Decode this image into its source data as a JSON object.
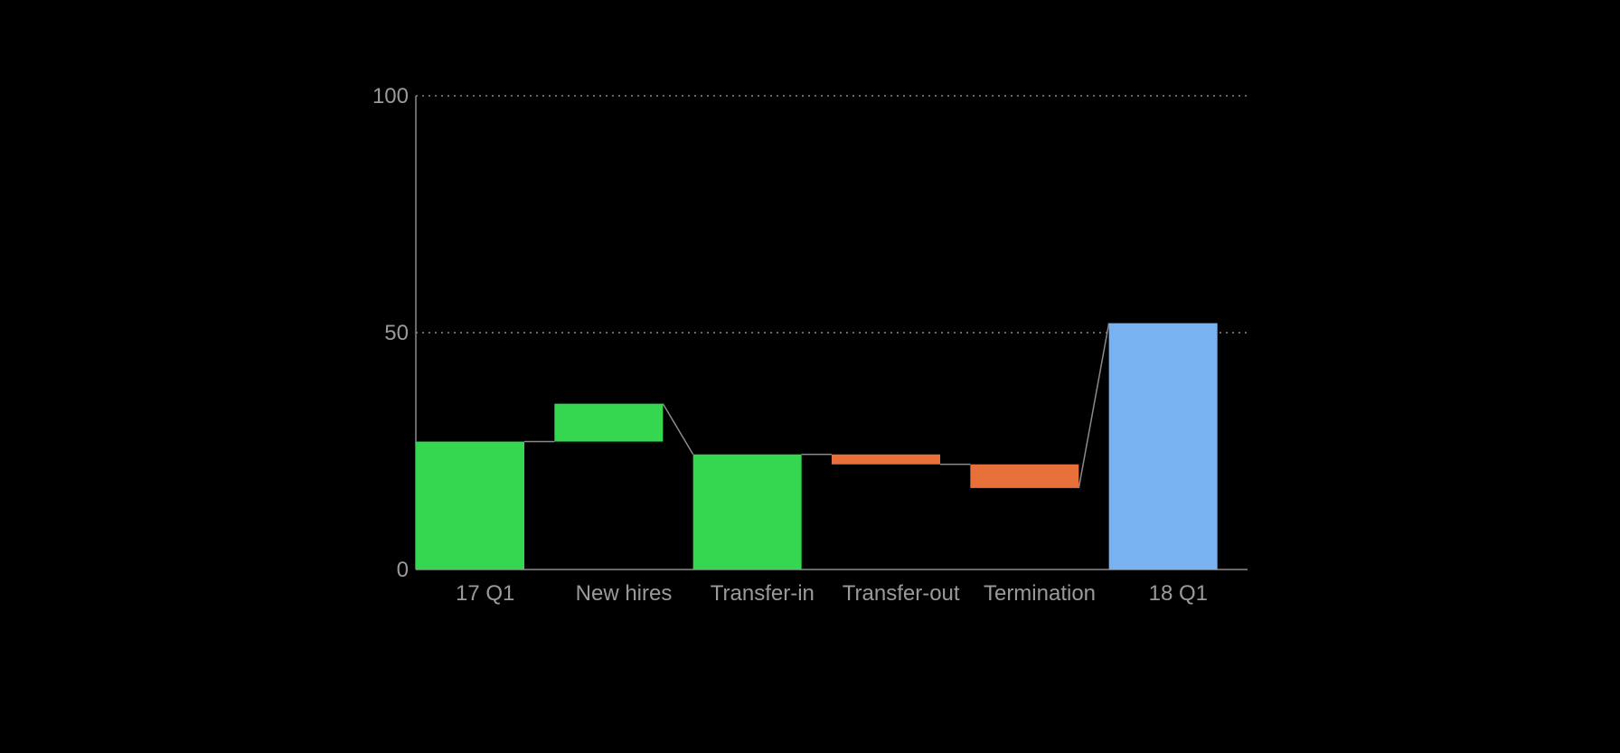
{
  "chart_data": {
    "type": "waterfall",
    "title": "",
    "xlabel": "",
    "ylabel": "",
    "ylim": [
      0,
      100
    ],
    "yticks": [
      0,
      50,
      100
    ],
    "grid": "horizontal-dotted",
    "categories": [
      "17 Q1",
      "New hires",
      "Transfer-in",
      "Transfer-out",
      "Termination",
      "18 Q1"
    ],
    "bars": [
      {
        "label": "17 Q1",
        "start": 0,
        "end": 27,
        "kind": "total"
      },
      {
        "label": "New hires",
        "start": 27,
        "end": 35,
        "kind": "increase"
      },
      {
        "label": "Transfer-in",
        "start": 0,
        "end": 24.3,
        "kind": "increase"
      },
      {
        "label": "Transfer-out",
        "start": 24.3,
        "end": 22.2,
        "kind": "decrease"
      },
      {
        "label": "Termination",
        "start": 22.2,
        "end": 17.2,
        "kind": "decrease"
      },
      {
        "label": "18 Q1",
        "start": 0,
        "end": 52,
        "kind": "total-end"
      }
    ],
    "colors": {
      "increase": "#34D74F",
      "total": "#34D74F",
      "decrease": "#E8703A",
      "total-end": "#78B2F0",
      "axis": "#8A8A8A",
      "grid": "#8A8A8A",
      "connector": "#8A8A8A",
      "text": "#9A9A9A",
      "background": "#000000"
    }
  }
}
